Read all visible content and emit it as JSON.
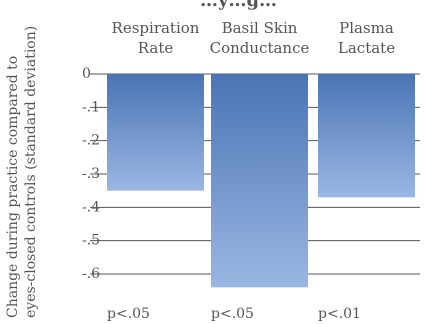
{
  "chart_data": {
    "type": "bar",
    "title_fragment": "…y…g…",
    "ylabel_lines": [
      "Change during practice compared to",
      "eyes-closed controls (standard deviation)"
    ],
    "categories": [
      [
        "Respiration",
        "Rate"
      ],
      [
        "Basil Skin",
        "Conductance"
      ],
      [
        "Plasma",
        "Lactate"
      ]
    ],
    "values": [
      -0.35,
      -0.64,
      -0.37
    ],
    "significance": [
      "p<.05",
      "p<.05",
      "p<.01"
    ],
    "yticks": [
      {
        "value": 0,
        "label": "0"
      },
      {
        "value": -0.1,
        "label": "-.1"
      },
      {
        "value": -0.2,
        "label": "-.2"
      },
      {
        "value": -0.3,
        "label": "-.3"
      },
      {
        "value": -0.4,
        "label": "-.4"
      },
      {
        "value": -0.5,
        "label": "-.5"
      },
      {
        "value": -0.6,
        "label": "-.6"
      }
    ],
    "ylim": [
      -0.64,
      0
    ],
    "grid": true,
    "colors": {
      "bar_top": "#4a74b4",
      "bar_bottom": "#9ab7e2",
      "grid": "#555555",
      "text": "#555555"
    }
  }
}
